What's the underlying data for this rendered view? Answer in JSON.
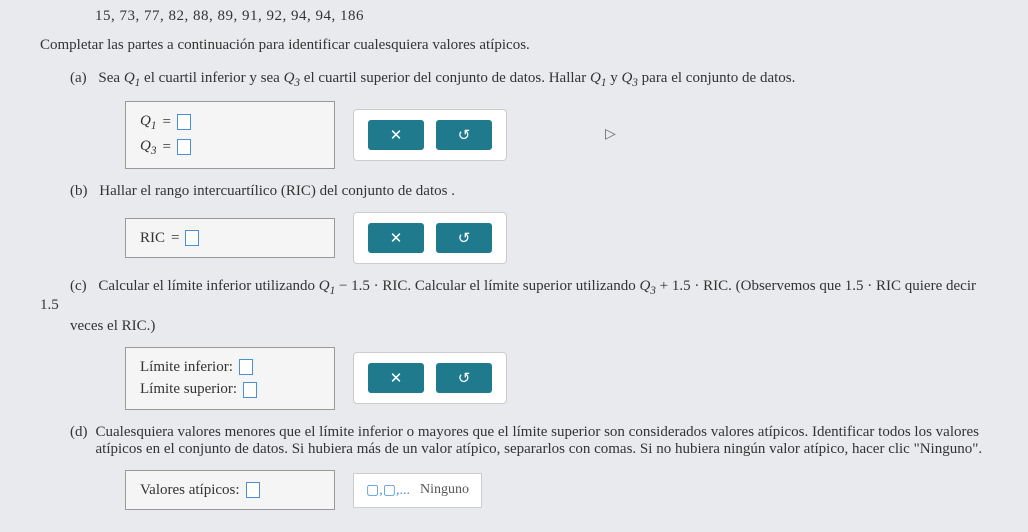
{
  "dataset": "15, 73, 77, 82, 88, 89, 91, 92, 94, 94, 186",
  "intro": "Completar las partes a continuación para identificar cualesquiera valores atípicos.",
  "parts": {
    "a": {
      "label": "(a)",
      "text_pre": "Sea ",
      "q1": "Q",
      "q1_sub": "1",
      "text_mid1": " el cuartil inferior y sea ",
      "q3": "Q",
      "q3_sub": "3",
      "text_mid2": " el cuartil superior del conjunto de datos. Hallar ",
      "text_mid3": " y ",
      "text_end": " para el conjunto de datos.",
      "box_q1": "Q",
      "box_q1_sub": "1",
      "box_q3": "Q",
      "box_q3_sub": "3",
      "eq": " = "
    },
    "b": {
      "label": "(b)",
      "text": "Hallar el rango intercuartílico (RIC) del conjunto de datos .",
      "box_label": "RIC",
      "eq": " = "
    },
    "c": {
      "label": "(c)",
      "text_pre": "Calcular el límite inferior utilizando ",
      "q1": "Q",
      "q1_sub": "1",
      "minus": " − 1.5 · RIC. Calcular el límite superior utilizando ",
      "q3": "Q",
      "q3_sub": "3",
      "plus": " + 1.5 · RIC. (Observemos que 1.5 · RIC quiere decir 1.5",
      "text_cont": "veces el RIC.)",
      "lower": "Límite inferior: ",
      "upper": "Límite superior: "
    },
    "d": {
      "label": "(d)",
      "text": "Cualesquiera valores menores que el límite inferior o mayores que el límite superior son considerados valores atípicos. Identificar todos los valores atípicos en el conjunto de datos. Si hubiera más de un valor atípico, separarlos con comas. Si no hubiera ningún valor atípico, hacer clic \"Ninguno\".",
      "box_label": "Valores atípicos: ",
      "ninguno": "Ninguno",
      "list_icon": "▢,▢,..."
    }
  },
  "buttons": {
    "close": "✕",
    "reset": "↺"
  },
  "colors": {
    "btn_bg": "#1e7a8c",
    "page_bg": "#e8eaed"
  }
}
